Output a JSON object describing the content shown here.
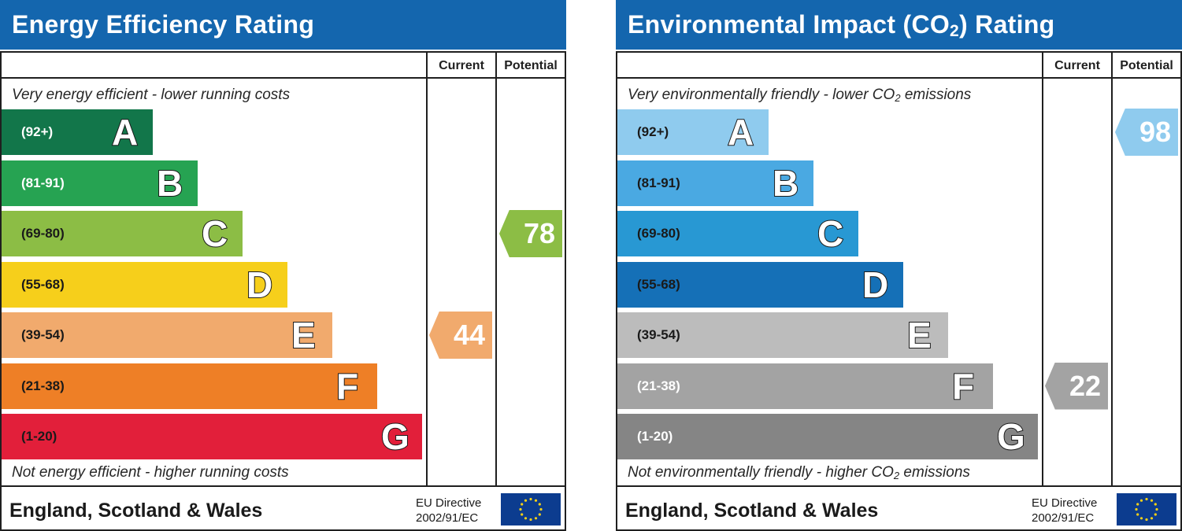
{
  "chart_data": [
    {
      "type": "bar",
      "title": "Energy Efficiency Rating",
      "columns": [
        "Current",
        "Potential"
      ],
      "top_caption": "Very energy efficient - lower running costs",
      "bottom_caption": "Not energy efficient - higher running costs",
      "bands": [
        {
          "range": "(92+)",
          "letter": "A",
          "color": "#12764a",
          "text_color": "#ffffff"
        },
        {
          "range": "(81-91)",
          "letter": "B",
          "color": "#26a352",
          "text_color": "#ffffff"
        },
        {
          "range": "(69-80)",
          "letter": "C",
          "color": "#8cbd45",
          "text_color": "#1a1a1a"
        },
        {
          "range": "(55-68)",
          "letter": "D",
          "color": "#f6cf1b",
          "text_color": "#1a1a1a"
        },
        {
          "range": "(39-54)",
          "letter": "E",
          "color": "#f1aa6d",
          "text_color": "#1a1a1a"
        },
        {
          "range": "(21-38)",
          "letter": "F",
          "color": "#ee7f26",
          "text_color": "#1a1a1a"
        },
        {
          "range": "(1-20)",
          "letter": "G",
          "color": "#e21f3a",
          "text_color": "#1a1a1a"
        }
      ],
      "current": {
        "value": "44",
        "band": "E",
        "color": "#f1aa6d"
      },
      "potential": {
        "value": "78",
        "band": "C",
        "color": "#8cbd45"
      },
      "footer": {
        "region": "England, Scotland & Wales",
        "directive_line1": "EU Directive",
        "directive_line2": "2002/91/EC"
      }
    },
    {
      "type": "bar",
      "title": "Environmental Impact (CO",
      "title_sub": "2",
      "title_end": ") Rating",
      "columns": [
        "Current",
        "Potential"
      ],
      "top_caption": "Very environmentally friendly - lower CO",
      "top_caption_sub": "2",
      "top_caption_end": " emissions",
      "bottom_caption": "Not environmentally friendly - higher CO",
      "bottom_caption_sub": "2",
      "bottom_caption_end": " emissions",
      "bands": [
        {
          "range": "(92+)",
          "letter": "A",
          "color": "#8fcbee",
          "text_color": "#1a1a1a"
        },
        {
          "range": "(81-91)",
          "letter": "B",
          "color": "#4aa9e2",
          "text_color": "#1a1a1a"
        },
        {
          "range": "(69-80)",
          "letter": "C",
          "color": "#2898d3",
          "text_color": "#1a1a1a"
        },
        {
          "range": "(55-68)",
          "letter": "D",
          "color": "#1570b7",
          "text_color": "#1a1a1a"
        },
        {
          "range": "(39-54)",
          "letter": "E",
          "color": "#bcbcbc",
          "text_color": "#1a1a1a"
        },
        {
          "range": "(21-38)",
          "letter": "F",
          "color": "#a3a3a3",
          "text_color": "#ffffff"
        },
        {
          "range": "(1-20)",
          "letter": "G",
          "color": "#858585",
          "text_color": "#ffffff"
        }
      ],
      "current": {
        "value": "22",
        "band": "F",
        "color": "#a3a3a3"
      },
      "potential": {
        "value": "98",
        "band": "A",
        "color": "#8fcbee"
      },
      "footer": {
        "region": "England, Scotland & Wales",
        "directive_line1": "EU Directive",
        "directive_line2": "2002/91/EC"
      }
    }
  ]
}
